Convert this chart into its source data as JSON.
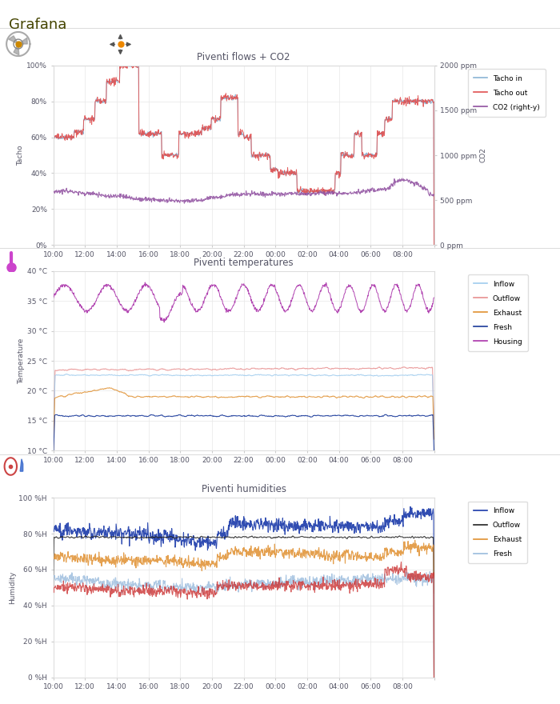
{
  "title": "Grafana",
  "chart1_title": "Piventi flows + CO2",
  "chart2_title": "Piventi temperatures",
  "chart3_title": "Piventi humidities",
  "time_labels": [
    "10:00",
    "12:00",
    "14:00",
    "16:00",
    "18:00",
    "20:00",
    "22:00",
    "00:00",
    "02:00",
    "04:00",
    "06:00",
    "08:00",
    ""
  ],
  "chart1_ylabel_left": "Tacho",
  "chart1_ylabel_right": "CO2",
  "chart2_ylabel": "Temperature",
  "chart3_ylabel": "Humidity",
  "color_tacho_in": "#8ab4d4",
  "color_tacho_out": "#e05050",
  "color_co2": "#9050a0",
  "color_inflow_temp": "#a0ccee",
  "color_outflow_temp": "#e89090",
  "color_exhaust_temp": "#e09030",
  "color_fresh_temp": "#1a3a9a",
  "color_housing_temp": "#aa33aa",
  "color_inflow_hum": "#1a3aaa",
  "color_outflow_hum": "#222222",
  "color_exhaust_hum": "#e09030",
  "color_fresh_hum": "#99bbdd",
  "color_fresh_hum2": "#cc3333",
  "bg_color": "#ffffff",
  "grid_color": "#e8e8e8",
  "text_color": "#555566",
  "title_color": "#444400"
}
